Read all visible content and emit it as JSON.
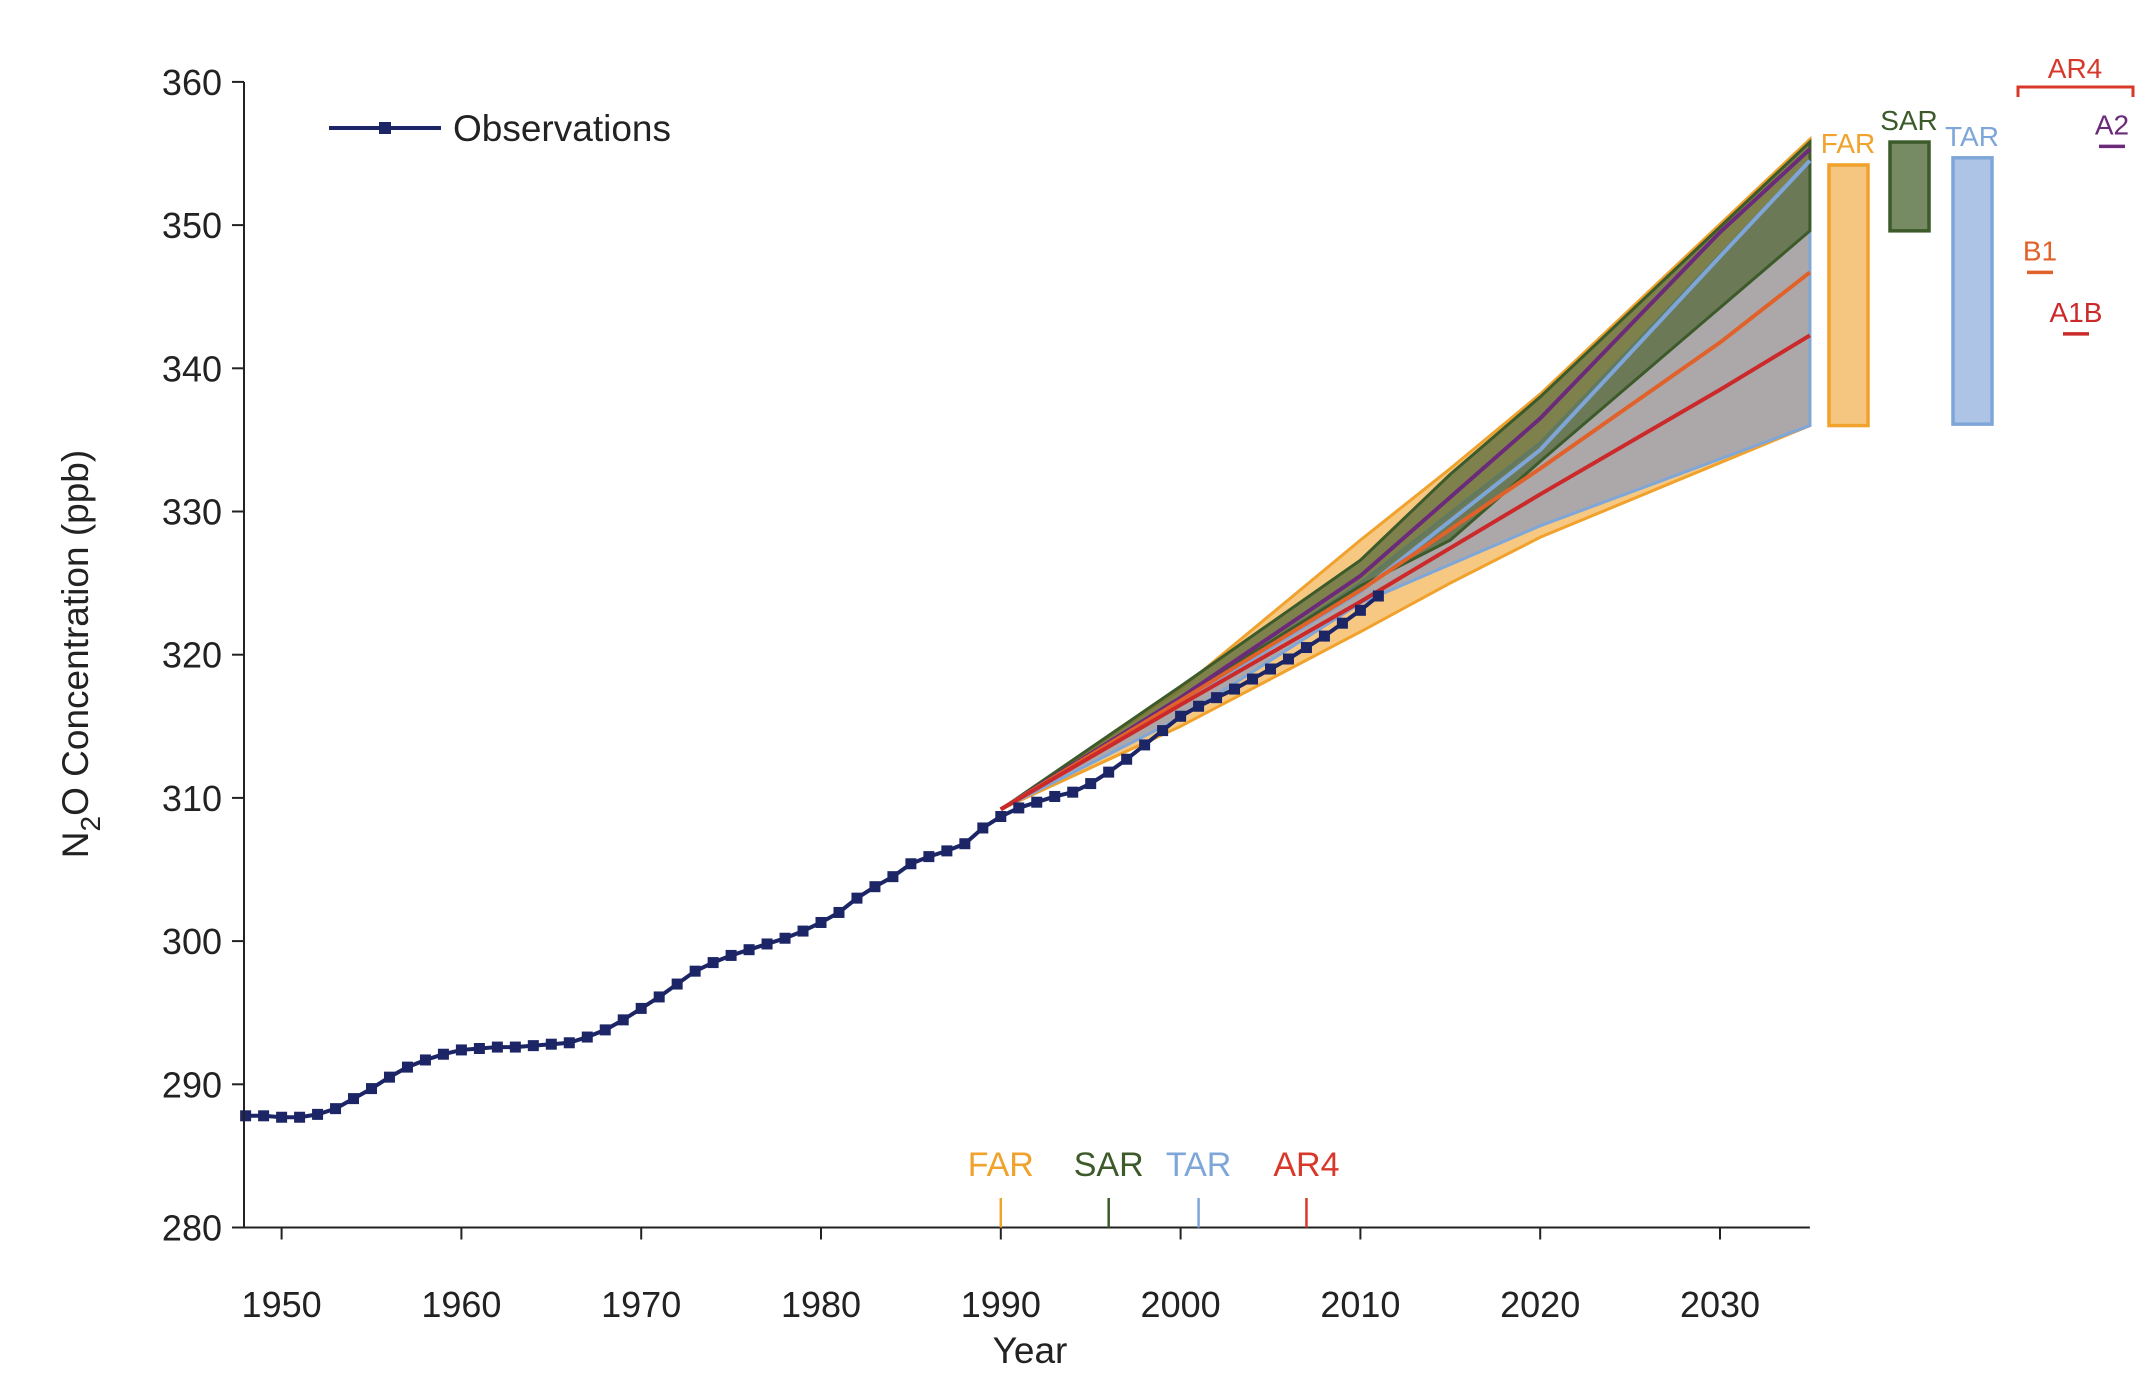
{
  "chart_data": {
    "type": "line",
    "xlabel": "Year",
    "ylabel": "N2O Concentration (ppb)",
    "ylabel_main": "N",
    "ylabel_sub": "2",
    "ylabel_rest": "O Concentration (ppb)",
    "xlim": [
      1948,
      2035
    ],
    "ylim": [
      280,
      360
    ],
    "xticks": [
      1950,
      1960,
      1970,
      1980,
      1990,
      2000,
      2010,
      2020,
      2030
    ],
    "yticks": [
      280,
      290,
      300,
      310,
      320,
      330,
      340,
      350,
      360
    ],
    "legend": {
      "position": "top-left",
      "entries": [
        "Observations"
      ]
    },
    "colors": {
      "observations": "#1c2566",
      "FAR": "#f0a22c",
      "SAR": "#3d5a2a",
      "TAR": "#7fa6d8",
      "AR4": "#d8382a",
      "A2": "#6b2a7a",
      "B1": "#e0622a",
      "A1B": "#cc2a2a"
    },
    "observations": {
      "name": "Observations",
      "x": [
        1948,
        1949,
        1950,
        1951,
        1952,
        1953,
        1954,
        1955,
        1956,
        1957,
        1958,
        1959,
        1960,
        1961,
        1962,
        1963,
        1964,
        1965,
        1966,
        1967,
        1968,
        1969,
        1970,
        1971,
        1972,
        1973,
        1974,
        1975,
        1976,
        1977,
        1978,
        1979,
        1980,
        1981,
        1982,
        1983,
        1984,
        1985,
        1986,
        1987,
        1988,
        1989,
        1990,
        1991,
        1992,
        1993,
        1994,
        1995,
        1996,
        1997,
        1998,
        1999,
        2000,
        2001,
        2002,
        2003,
        2004,
        2005,
        2006,
        2007,
        2008,
        2009,
        2010,
        2011
      ],
      "y": [
        287.8,
        287.8,
        287.7,
        287.7,
        287.9,
        288.3,
        289.0,
        289.7,
        290.5,
        291.2,
        291.7,
        292.1,
        292.4,
        292.5,
        292.6,
        292.6,
        292.7,
        292.8,
        292.9,
        293.3,
        293.8,
        294.5,
        295.3,
        296.1,
        297.0,
        297.9,
        298.5,
        299.0,
        299.4,
        299.8,
        300.2,
        300.7,
        301.3,
        302.0,
        303.0,
        303.8,
        304.5,
        305.4,
        305.9,
        306.3,
        306.8,
        307.9,
        308.7,
        309.3,
        309.7,
        310.1,
        310.4,
        311.0,
        311.8,
        312.7,
        313.7,
        314.7,
        315.7,
        316.4,
        317.0,
        317.6,
        318.3,
        319.0,
        319.7,
        320.5,
        321.3,
        322.2,
        323.1,
        324.1
      ]
    },
    "projection_bands": [
      {
        "name": "FAR",
        "x": [
          1990,
          2000,
          2010,
          2015,
          2020,
          2035
        ],
        "upper": [
          309.2,
          317.6,
          328.0,
          333.0,
          338.2,
          356.0
        ],
        "lower": [
          309.2,
          315.0,
          321.6,
          325.0,
          328.2,
          336.0
        ]
      },
      {
        "name": "TAR",
        "x": [
          1990,
          2000,
          2010,
          2020,
          2035
        ],
        "upper": [
          309.2,
          316.8,
          325.0,
          334.8,
          354.5
        ],
        "lower": [
          309.2,
          315.6,
          323.6,
          329.0,
          336.0
        ]
      },
      {
        "name": "SAR",
        "x": [
          1990,
          2000,
          2010,
          2015,
          2020,
          2035
        ],
        "upper": [
          309.2,
          317.8,
          326.6,
          332.6,
          338.0,
          355.8
        ],
        "lower": [
          309.2,
          317.0,
          324.8,
          328.0,
          333.5,
          349.6
        ]
      }
    ],
    "projection_lines": [
      {
        "name": "TAR",
        "x": [
          1990,
          2000,
          2010,
          2020,
          2030,
          2035
        ],
        "y": [
          309.2,
          316.6,
          324.4,
          334.3,
          347.8,
          354.5
        ]
      },
      {
        "name": "A2",
        "x": [
          1990,
          2000,
          2010,
          2020,
          2030,
          2035
        ],
        "y": [
          309.2,
          317.0,
          325.5,
          336.5,
          349.5,
          355.3
        ]
      },
      {
        "name": "B1",
        "x": [
          1990,
          2000,
          2010,
          2020,
          2030,
          2035
        ],
        "y": [
          309.2,
          316.8,
          324.5,
          333.0,
          341.8,
          346.7
        ]
      },
      {
        "name": "A1B",
        "x": [
          1990,
          2000,
          2010,
          2020,
          2030,
          2035
        ],
        "y": [
          309.2,
          316.5,
          323.7,
          331.2,
          338.5,
          342.3
        ]
      }
    ],
    "range_bars": [
      {
        "label": "FAR",
        "low": 336.0,
        "high": 354.2
      },
      {
        "label": "SAR",
        "low": 349.6,
        "high": 355.8
      },
      {
        "label": "TAR",
        "low": 336.1,
        "high": 354.7
      }
    ],
    "ar4_label": "AR4",
    "ar4_markers": [
      {
        "label": "B1",
        "value": 346.7
      },
      {
        "label": "A1B",
        "value": 342.4
      },
      {
        "label": "A2",
        "value": 355.5
      }
    ],
    "report_years": [
      {
        "label": "FAR",
        "year": 1990
      },
      {
        "label": "SAR",
        "year": 1996
      },
      {
        "label": "TAR",
        "year": 2001
      },
      {
        "label": "AR4",
        "year": 2007
      }
    ]
  }
}
